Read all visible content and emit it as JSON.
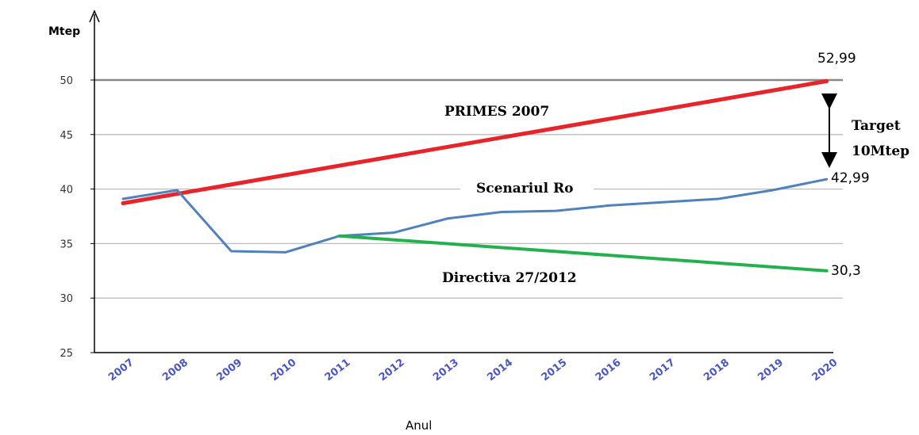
{
  "chart_data": {
    "type": "line",
    "ylabel": "Mtep",
    "xlabel": "Anul",
    "ylim": [
      25,
      50
    ],
    "yticks": [
      "25",
      "30",
      "35",
      "40",
      "45",
      "50"
    ],
    "categories": [
      "2007",
      "2008",
      "2009",
      "2010",
      "2011",
      "2012",
      "2013",
      "2014",
      "2015",
      "2016",
      "2017",
      "2018",
      "2019",
      "2020"
    ],
    "grid": true,
    "series": [
      {
        "name": "PRIMES 2007",
        "color": "#e8232a",
        "x": [
          "2007",
          "2020"
        ],
        "values": [
          38.7,
          49.9
        ]
      },
      {
        "name": "Scenariul Ro",
        "color": "#4f81bd",
        "x": [
          "2007",
          "2008",
          "2009",
          "2010",
          "2011",
          "2012",
          "2013",
          "2014",
          "2015",
          "2016",
          "2017",
          "2018",
          "2019",
          "2020"
        ],
        "values": [
          39.1,
          39.9,
          34.3,
          34.2,
          35.7,
          36.0,
          37.3,
          37.9,
          38.0,
          38.5,
          38.8,
          39.1,
          39.9,
          40.9
        ]
      },
      {
        "name": "Directiva 27/2012",
        "color": "#22b14c",
        "x": [
          "2011",
          "2020"
        ],
        "values": [
          35.7,
          32.5
        ]
      }
    ],
    "annotations": {
      "top_value": "52,99",
      "ro_value": "42,99",
      "dir_value": "30,3",
      "target_line1": "Target",
      "target_line2": "10Mtep"
    }
  }
}
